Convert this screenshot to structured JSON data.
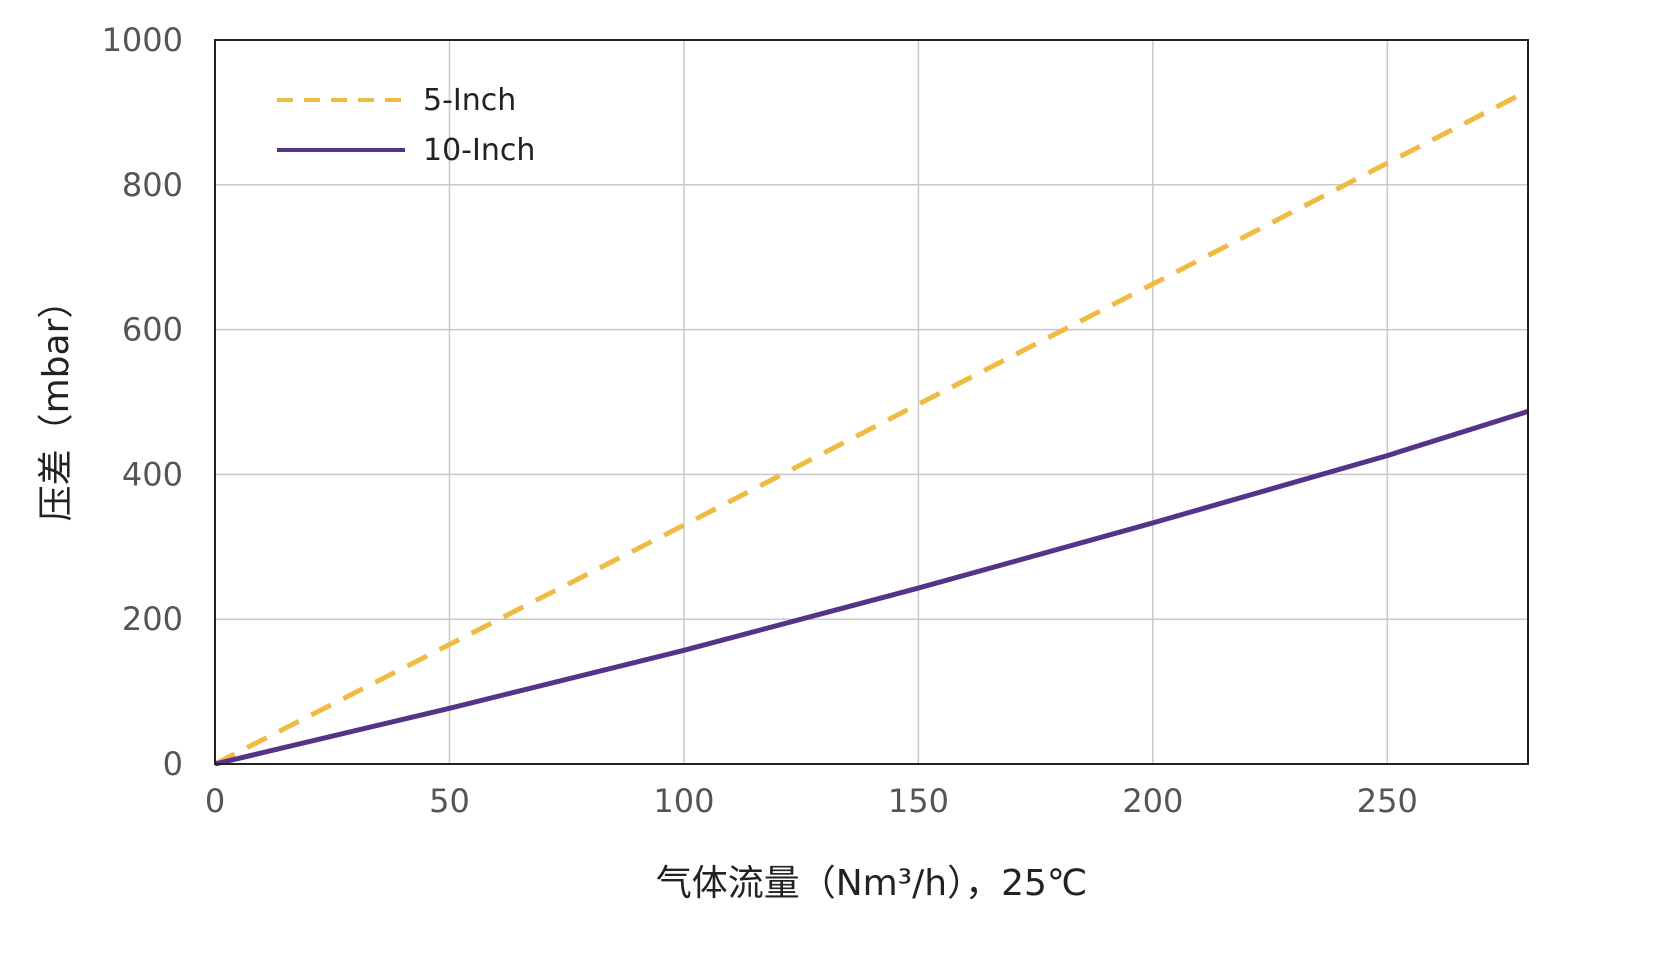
{
  "chart_data": {
    "type": "line",
    "title": "",
    "xlabel": "气体流量（Nm³/h），25℃",
    "ylabel": "压差（mbar）",
    "xlim": [
      0,
      280
    ],
    "ylim": [
      0,
      1000
    ],
    "x_ticks": [
      "0",
      "50",
      "100",
      "150",
      "200",
      "250"
    ],
    "y_ticks": [
      "0",
      "200",
      "400",
      "600",
      "800",
      "1000"
    ],
    "grid": true,
    "legend_position": "top-left",
    "series": [
      {
        "name": "5-Inch",
        "style": "dashed",
        "color": "#F0BB42",
        "x": [
          0,
          50,
          100,
          150,
          200,
          250,
          280
        ],
        "y": [
          0,
          165,
          330,
          497,
          663,
          830,
          930
        ]
      },
      {
        "name": "10-Inch",
        "style": "solid",
        "color": "#553388",
        "x": [
          0,
          50,
          100,
          150,
          200,
          250,
          280
        ],
        "y": [
          0,
          77,
          157,
          243,
          333,
          426,
          487
        ]
      }
    ]
  }
}
